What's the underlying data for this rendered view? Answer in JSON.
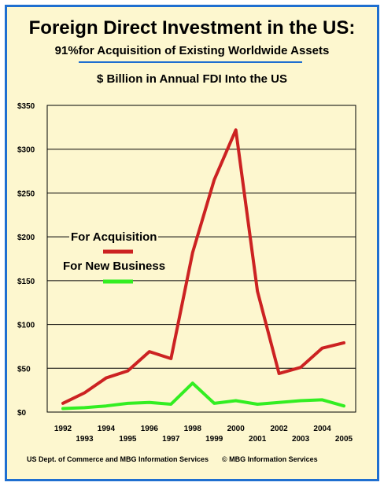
{
  "title": "Foreign Direct Investment in the US:",
  "subtitle": "91%for Acquisition of Existing Worldwide Assets",
  "units_label": "$ Billion in Annual FDI Into the US",
  "footer": {
    "left": "US Dept. of Commerce and MBG Information Services",
    "right": "© MBG Information Services"
  },
  "colors": {
    "frame_border": "#1f6fd0",
    "background": "#fdf7cf",
    "acquisition": "#cc2222",
    "new_business": "#33ee22"
  },
  "chart_data": {
    "type": "line",
    "x": [
      "1992",
      "1993",
      "1994",
      "1995",
      "1996",
      "1997",
      "1998",
      "1999",
      "2000",
      "2001",
      "2002",
      "2003",
      "2004",
      "2005"
    ],
    "ylim": [
      0,
      350
    ],
    "yticks": [
      "$0",
      "$50",
      "$100",
      "$150",
      "$200",
      "$250",
      "$300",
      "$350"
    ],
    "grid": true,
    "series": [
      {
        "name": "For Acquisition",
        "values": [
          10,
          22,
          39,
          47,
          69,
          61,
          182,
          265,
          322,
          138,
          44,
          51,
          73,
          79
        ]
      },
      {
        "name": "For New Business",
        "values": [
          4,
          5,
          7,
          10,
          11,
          9,
          33,
          10,
          13,
          9,
          11,
          13,
          14,
          7
        ]
      }
    ]
  }
}
